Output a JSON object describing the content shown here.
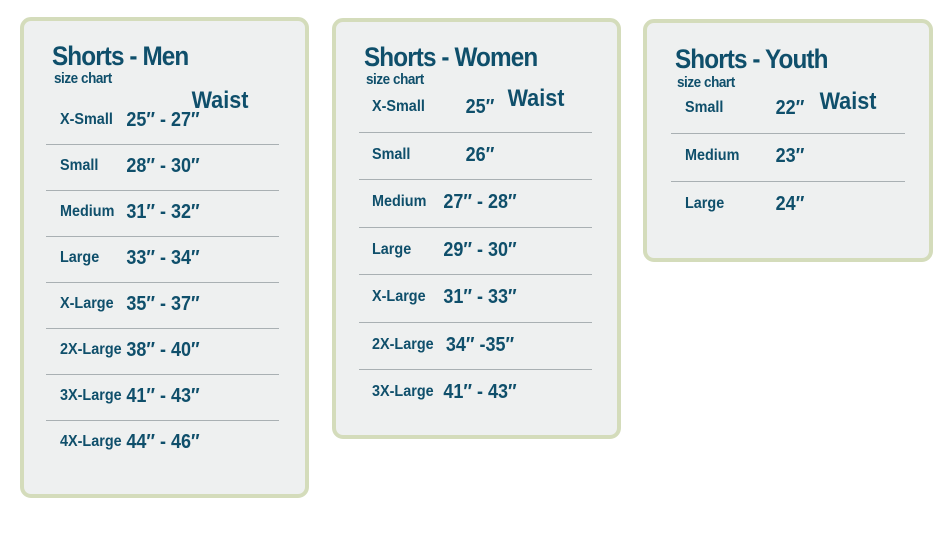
{
  "charts": [
    {
      "title": "Shorts - Men",
      "subtitle": "size chart",
      "header": "Waist",
      "rows": [
        [
          "X-Small",
          "25″ - 27″"
        ],
        [
          "Small",
          "28″ - 30″"
        ],
        [
          "Medium",
          "31″ - 32″"
        ],
        [
          "Large",
          "33″ - 34″"
        ],
        [
          "X-Large",
          "35″ - 37″"
        ],
        [
          "2X-Large",
          "38″ - 40″"
        ],
        [
          "3X-Large",
          "41″ - 43″"
        ],
        [
          "4X-Large",
          "44″ - 46″"
        ]
      ]
    },
    {
      "title": "Shorts - Women",
      "subtitle": "size chart",
      "header": "Waist",
      "rows": [
        [
          "X-Small",
          "25″"
        ],
        [
          "Small",
          "26″"
        ],
        [
          "Medium",
          "27″ - 28″"
        ],
        [
          "Large",
          "29″ - 30″"
        ],
        [
          "X-Large",
          "31″ - 33″"
        ],
        [
          "2X-Large",
          "34″ -35″"
        ],
        [
          "3X-Large",
          "41″ - 43″"
        ]
      ]
    },
    {
      "title": "Shorts - Youth",
      "subtitle": "size chart",
      "header": "Waist",
      "rows": [
        [
          "Small",
          "22″"
        ],
        [
          "Medium",
          "23″"
        ],
        [
          "Large",
          "24″"
        ]
      ]
    }
  ],
  "colors": {
    "text": "#0f4f6b",
    "border": "#d4dcbb",
    "card": "#eef0f0"
  }
}
